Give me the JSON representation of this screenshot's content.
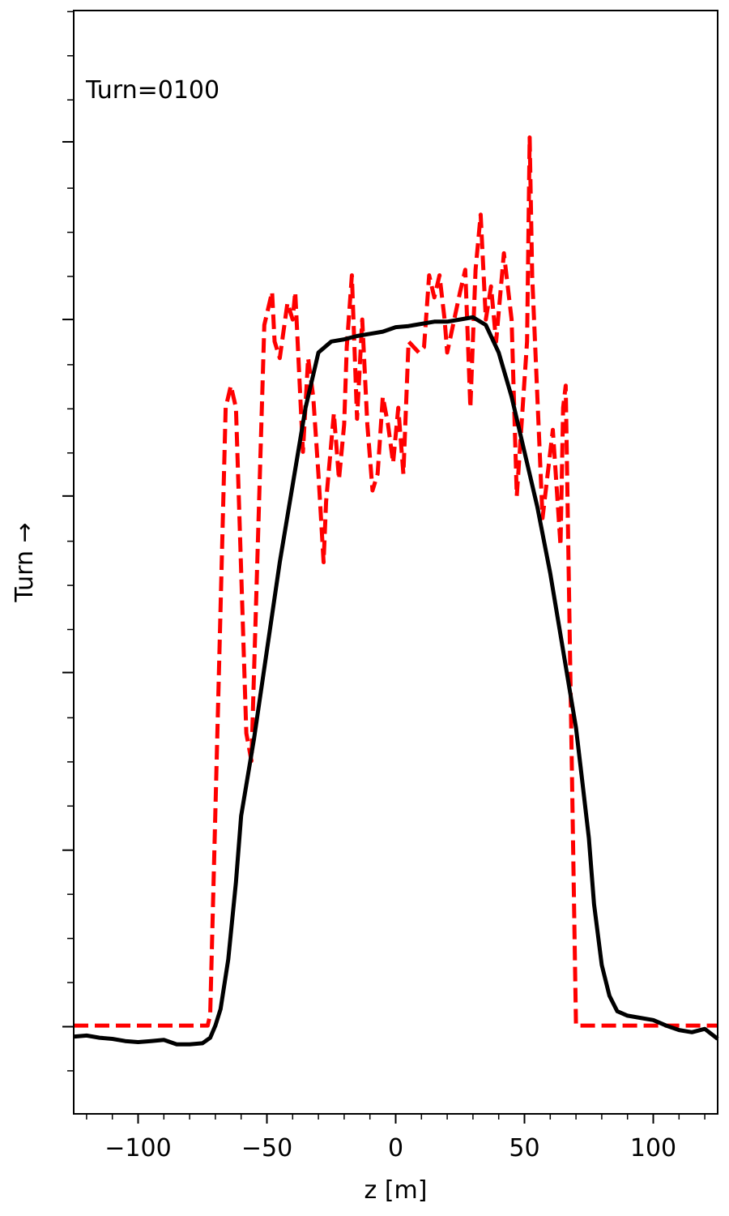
{
  "chart_data": {
    "type": "line",
    "title": "",
    "annotation": "Turn=0100",
    "xlabel": "z [m]",
    "ylabel": "Turn →",
    "xlim": [
      -125,
      125
    ],
    "ylim": [
      0,
      1
    ],
    "x_ticks": [
      -100,
      -50,
      0,
      50,
      100
    ],
    "x_tick_labels": [
      "−100",
      "−50",
      "0",
      "50",
      "100"
    ],
    "y_ticks": [
      0.079,
      0.239,
      0.4,
      0.56,
      0.72,
      0.881
    ],
    "y_tick_labels_shown": false,
    "grid": false,
    "legend": "none",
    "series": [
      {
        "color": "#ff0000",
        "style": "dashed",
        "x": [
          -125,
          -73,
          -72,
          -66,
          -64,
          -62,
          -58,
          -56,
          -51,
          -48,
          -47,
          -45,
          -42,
          -40,
          -39,
          -36,
          -34,
          -32,
          -30,
          -28,
          -27,
          -24,
          -22,
          -20,
          -19,
          -17,
          -15,
          -13,
          -11,
          -9,
          -7,
          -5,
          -3,
          -1,
          1,
          3,
          5,
          9,
          11,
          13,
          15,
          17,
          19,
          20,
          25,
          27,
          29,
          31,
          33,
          35,
          37,
          39,
          42,
          45,
          47,
          51,
          52,
          53,
          57,
          61,
          64,
          65,
          66,
          70,
          125
        ],
        "y": [
          0.08,
          0.08,
          0.09,
          0.64,
          0.66,
          0.64,
          0.345,
          0.32,
          0.715,
          0.745,
          0.7,
          0.685,
          0.735,
          0.72,
          0.745,
          0.6,
          0.685,
          0.65,
          0.58,
          0.5,
          0.555,
          0.635,
          0.575,
          0.625,
          0.695,
          0.76,
          0.63,
          0.72,
          0.625,
          0.565,
          0.58,
          0.65,
          0.625,
          0.59,
          0.64,
          0.58,
          0.7,
          0.69,
          0.695,
          0.76,
          0.74,
          0.76,
          0.72,
          0.69,
          0.745,
          0.765,
          0.64,
          0.765,
          0.815,
          0.72,
          0.75,
          0.7,
          0.78,
          0.72,
          0.56,
          0.7,
          0.885,
          0.76,
          0.54,
          0.62,
          0.515,
          0.64,
          0.66,
          0.08,
          0.08
        ]
      },
      {
        "color": "#000000",
        "style": "solid",
        "x": [
          -125,
          -120,
          -115,
          -110,
          -105,
          -100,
          -95,
          -90,
          -85,
          -80,
          -75,
          -72,
          -70,
          -68,
          -65,
          -62,
          -60,
          -55,
          -50,
          -45,
          -40,
          -35,
          -30,
          -25,
          -20,
          -15,
          -10,
          -5,
          0,
          5,
          10,
          15,
          20,
          25,
          30,
          35,
          40,
          45,
          50,
          55,
          60,
          65,
          70,
          72,
          75,
          77,
          80,
          83,
          86,
          90,
          95,
          100,
          105,
          110,
          115,
          120,
          125
        ],
        "y": [
          0.07,
          0.071,
          0.069,
          0.068,
          0.066,
          0.065,
          0.066,
          0.067,
          0.063,
          0.063,
          0.064,
          0.069,
          0.08,
          0.095,
          0.14,
          0.21,
          0.27,
          0.34,
          0.42,
          0.5,
          0.57,
          0.64,
          0.69,
          0.7,
          0.702,
          0.705,
          0.707,
          0.709,
          0.713,
          0.714,
          0.716,
          0.718,
          0.718,
          0.72,
          0.722,
          0.715,
          0.69,
          0.65,
          0.6,
          0.55,
          0.49,
          0.42,
          0.35,
          0.31,
          0.25,
          0.19,
          0.135,
          0.107,
          0.093,
          0.089,
          0.087,
          0.085,
          0.08,
          0.076,
          0.074,
          0.077,
          0.068
        ]
      }
    ]
  }
}
